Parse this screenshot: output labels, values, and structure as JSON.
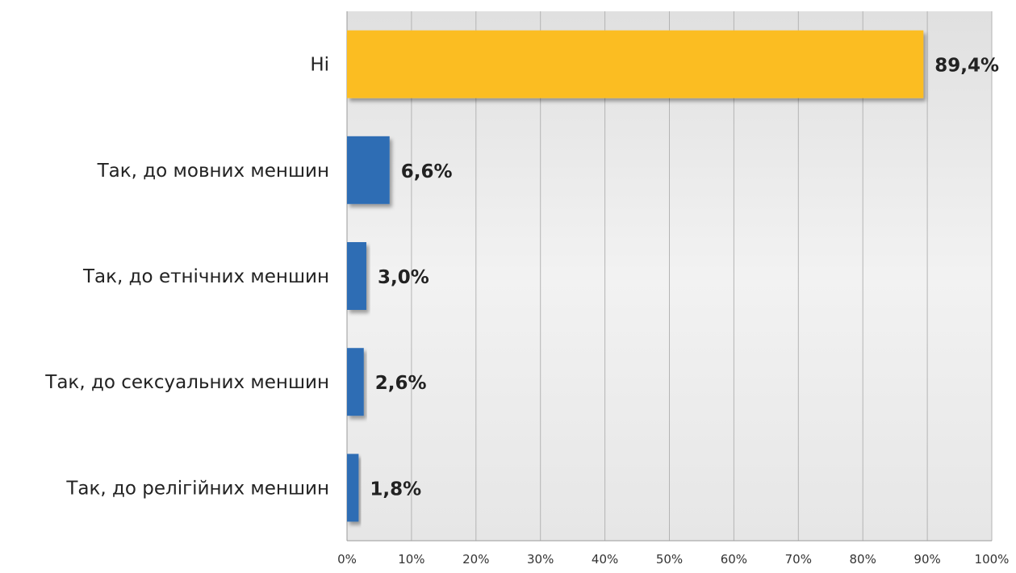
{
  "chart_data": {
    "type": "bar",
    "orientation": "horizontal",
    "categories": [
      "Ні",
      "Так, до мовних меншин",
      "Так, до етнічних меншин",
      "Так, до сексуальних меншин",
      "Так, до релігійних меншин"
    ],
    "values": [
      89.4,
      6.6,
      3.0,
      2.6,
      1.8
    ],
    "value_labels": [
      "89,4%",
      "6,6%",
      "3,0%",
      "2,6%",
      "1,8%"
    ],
    "xlim": [
      0,
      100
    ],
    "x_ticks": [
      "0%",
      "10%",
      "20%",
      "30%",
      "40%",
      "50%",
      "60%",
      "70%",
      "80%",
      "90%",
      "100%"
    ],
    "grid": true,
    "legend": "none",
    "colors": {
      "highlight": "#fbbd24",
      "default": "#2e6db4",
      "plot_background": "#ebebeb",
      "grid": "#b4b4b4",
      "text": "#222222"
    }
  }
}
